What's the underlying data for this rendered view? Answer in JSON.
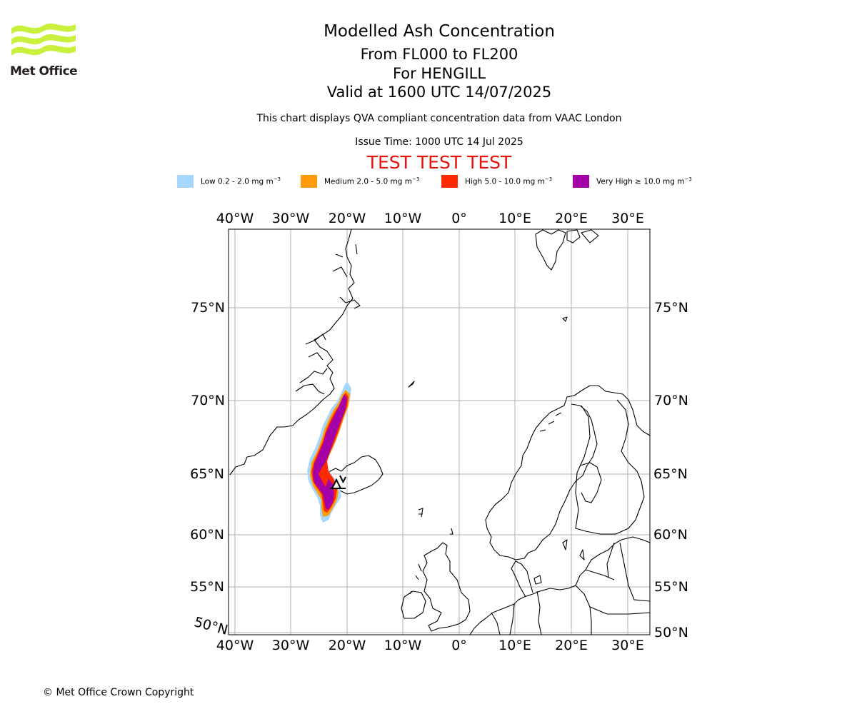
{
  "logo": {
    "text": "Met Office",
    "color": "#c8f03c",
    "icon": "met-office-waves-logo"
  },
  "header": {
    "title": "Modelled Ash Concentration",
    "levels": "From FL000 to FL200",
    "volcano": "For HENGILL",
    "valid": "Valid at 1600 UTC 14/07/2025",
    "subtitle": "This chart displays QVA compliant concentration data from VAAC London",
    "issue_time": "Issue Time: 1000 UTC 14 Jul 2025",
    "test_banner": "TEST TEST TEST",
    "test_color": "#e8120c"
  },
  "legend": [
    {
      "label": "Low 0.2 - 2.0 mg m",
      "sup": "−3",
      "color": "#a6d7ff"
    },
    {
      "label": "Medium 2.0 - 5.0 mg m",
      "sup": "−3",
      "color": "#ff9b0a"
    },
    {
      "label": "High 5.0 - 10.0 mg m",
      "sup": "−3",
      "color": "#ff2a00"
    },
    {
      "label": "Very High ≥ 10.0 mg m",
      "sup": "−3",
      "color": "#a300a8"
    }
  ],
  "map": {
    "lon_ticks": [
      "40°W",
      "30°W",
      "20°W",
      "10°W",
      "0°",
      "10°E",
      "20°E",
      "30°E"
    ],
    "lat_ticks_left": [
      "75°N",
      "70°N",
      "65°N",
      "60°N",
      "55°N",
      "50°N"
    ],
    "lat_ticks_right": [
      "75°N",
      "70°N",
      "65°N",
      "60°N",
      "55°N",
      "50°N"
    ],
    "volcano_marker": "volcano-triangle-icon"
  },
  "footer": {
    "copyright": "© Met Office Crown Copyright"
  }
}
